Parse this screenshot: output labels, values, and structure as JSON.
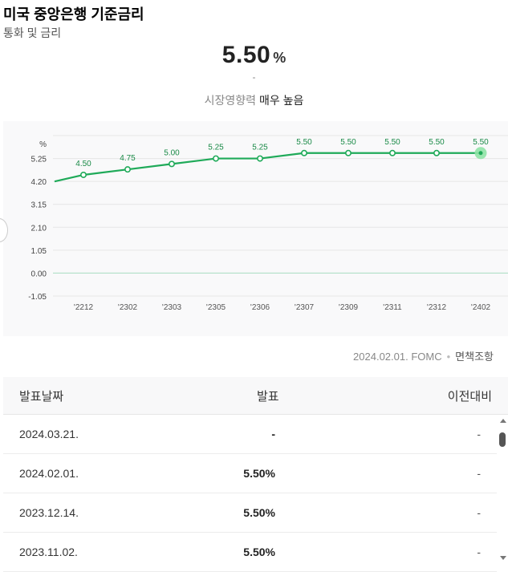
{
  "page": {
    "title": "미국 중앙은행 기준금리",
    "subtitle": "통화 및 금리"
  },
  "summary": {
    "value": "5.50",
    "unit": "%",
    "change": "-",
    "impact_label": "시장영향력",
    "impact_level": "매우 높음"
  },
  "chart_data": {
    "type": "line",
    "y_unit": "%",
    "categories": [
      "'2212",
      "'2302",
      "'2303",
      "'2305",
      "'2306",
      "'2307",
      "'2309",
      "'2311",
      "'2312",
      "'2402"
    ],
    "values": [
      4.5,
      4.75,
      5.0,
      5.25,
      5.25,
      5.5,
      5.5,
      5.5,
      5.5,
      5.5
    ],
    "labels": [
      "4.50",
      "4.75",
      "5.00",
      "5.25",
      "5.25",
      "5.50",
      "5.50",
      "5.50",
      "5.50",
      "5.50"
    ],
    "start_value": 4.2,
    "y_ticks": [
      "5.25",
      "4.20",
      "3.15",
      "2.10",
      "1.05",
      "0.00",
      "-1.05"
    ],
    "y_tick_values": [
      5.25,
      4.2,
      3.15,
      2.1,
      1.05,
      0.0,
      -1.05
    ],
    "ylim": [
      -1.05,
      6.3
    ],
    "line_color": "#1faa59",
    "highlight_color": "#8fe3a6",
    "grid": true
  },
  "source": {
    "date": "2024.02.01. FOMC",
    "dot": "•",
    "disclaimer": "면책조항"
  },
  "table": {
    "headers": {
      "date": "발표날짜",
      "announcement": "발표",
      "previous": "이전대비"
    },
    "rows": [
      {
        "date": "2024.03.21.",
        "announcement": "-",
        "previous": "-"
      },
      {
        "date": "2024.02.01.",
        "announcement": "5.50%",
        "previous": "-"
      },
      {
        "date": "2023.12.14.",
        "announcement": "5.50%",
        "previous": "-"
      },
      {
        "date": "2023.11.02.",
        "announcement": "5.50%",
        "previous": "-"
      }
    ]
  }
}
